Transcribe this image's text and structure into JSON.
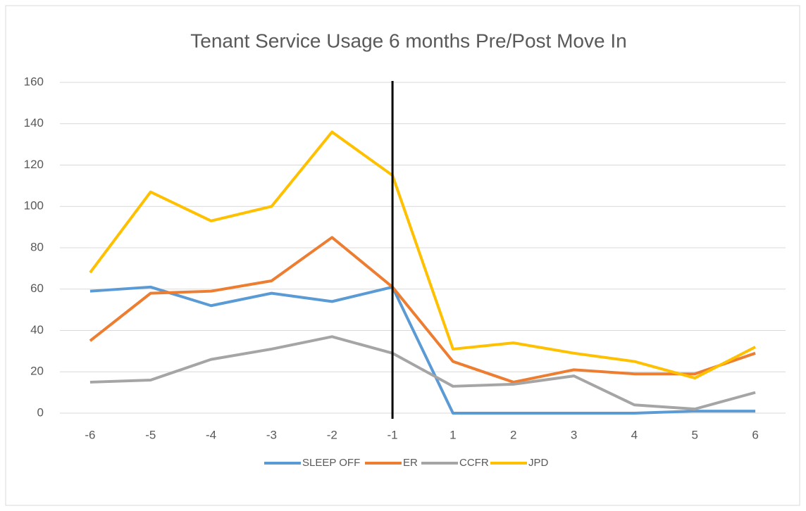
{
  "chart_data": {
    "type": "line",
    "title": "Tenant Service Usage 6 months Pre/Post Move In",
    "categories": [
      "-6",
      "-5",
      "-4",
      "-3",
      "-2",
      "-1",
      "1",
      "2",
      "3",
      "4",
      "5",
      "6"
    ],
    "series": [
      {
        "name": "SLEEP OFF",
        "color": "#5b9bd5",
        "values": [
          59,
          61,
          52,
          58,
          54,
          61,
          0,
          0,
          0,
          0,
          1,
          1
        ]
      },
      {
        "name": "ER",
        "color": "#ed7d31",
        "values": [
          35,
          58,
          59,
          64,
          85,
          61,
          25,
          15,
          21,
          19,
          19,
          29
        ]
      },
      {
        "name": "CCFR",
        "color": "#a5a5a5",
        "values": [
          15,
          16,
          26,
          31,
          37,
          29,
          13,
          14,
          18,
          4,
          2,
          10
        ]
      },
      {
        "name": "JPD",
        "color": "#ffc000",
        "values": [
          68,
          107,
          93,
          100,
          136,
          115,
          31,
          34,
          29,
          25,
          17,
          32
        ]
      }
    ],
    "ylim": [
      0,
      160
    ],
    "yticks": [
      0,
      20,
      40,
      60,
      80,
      100,
      120,
      140,
      160
    ],
    "grid": true,
    "legend": "bottom"
  }
}
